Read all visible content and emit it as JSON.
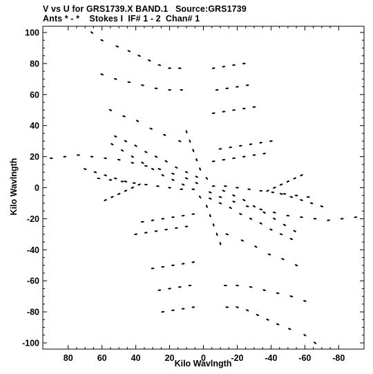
{
  "header": {
    "line1": "V vs U for GRS1739.X BAND.1   Source:GRS1739",
    "line2": "Ants * - *    Stokes I  IF# 1 - 2  Chan# 1"
  },
  "chart_data": {
    "type": "scatter",
    "title": "V vs U for GRS1739.X BAND.1   Source:GRS1739",
    "subtitle": "Ants * - *    Stokes I  IF# 1 - 2  Chan# 1",
    "xlabel": "Kilo Wavlngth",
    "ylabel": "Kilo Wavlngth",
    "x_axis_reversed": true,
    "xlim": [
      95,
      -95
    ],
    "ylim": [
      -104,
      104
    ],
    "xticks": [
      80,
      60,
      40,
      20,
      0,
      -20,
      -40,
      -60,
      -80
    ],
    "xtick_labels": [
      "80",
      "60",
      "40",
      "20",
      "0",
      "-20",
      "-40",
      "-60",
      "-80"
    ],
    "yticks": [
      100,
      80,
      60,
      40,
      20,
      0,
      -20,
      -40,
      -60,
      -80,
      -100
    ],
    "ytick_labels": [
      "100",
      "80",
      "60",
      "40",
      "20",
      "0",
      "-20",
      "-40",
      "-60",
      "-80",
      "-100"
    ],
    "grid": false,
    "marker_color": "#000000",
    "tracks": [
      {
        "x": [
          66,
          60,
          51,
          44,
          38,
          32,
          26,
          20,
          14
        ],
        "y": [
          100,
          95,
          91,
          88,
          85,
          82,
          79,
          77,
          77
        ]
      },
      {
        "x": [
          -14,
          -20,
          -26,
          -32,
          -38,
          -44,
          -51,
          -60,
          -66
        ],
        "y": [
          -77,
          -77,
          -79,
          -82,
          -85,
          -88,
          -91,
          -95,
          -100
        ]
      },
      {
        "x": [
          60,
          52,
          44,
          36,
          28,
          20,
          13
        ],
        "y": [
          73,
          70,
          68,
          66,
          64,
          63,
          63
        ]
      },
      {
        "x": [
          -13,
          -20,
          -28,
          -36,
          -44,
          -52,
          -60
        ],
        "y": [
          -63,
          -63,
          -64,
          -66,
          -68,
          -70,
          -73
        ]
      },
      {
        "x": [
          55,
          47,
          39,
          31,
          23,
          14
        ],
        "y": [
          50,
          46,
          43,
          38,
          34,
          30
        ]
      },
      {
        "x": [
          -14,
          -23,
          -31,
          -39,
          -47,
          -55
        ],
        "y": [
          -30,
          -34,
          -38,
          -43,
          -46,
          -50
        ]
      },
      {
        "x": [
          52,
          46,
          40,
          34,
          28,
          22,
          16,
          10,
          4
        ],
        "y": [
          33,
          30,
          27,
          23,
          20,
          17,
          13,
          10,
          7
        ]
      },
      {
        "x": [
          -4,
          -10,
          -16,
          -22,
          -28,
          -34,
          -40,
          -46,
          -52
        ],
        "y": [
          -7,
          -10,
          -13,
          -17,
          -20,
          -23,
          -27,
          -30,
          -33
        ]
      },
      {
        "x": [
          2,
          -2,
          -4,
          -6,
          -8,
          -10
        ],
        "y": [
          -6,
          -12,
          -18,
          -24,
          -30,
          -36
        ]
      },
      {
        "x": [
          -2,
          2,
          4,
          6,
          8,
          10
        ],
        "y": [
          6,
          12,
          18,
          24,
          30,
          36
        ]
      },
      {
        "x": [
          -12,
          -18,
          -24,
          -30,
          -36,
          -42,
          -48,
          -54
        ],
        "y": [
          -2,
          -5,
          -8,
          -12,
          -16,
          -20,
          -24,
          -28
        ]
      },
      {
        "x": [
          12,
          18,
          24,
          30,
          36,
          42,
          48,
          54
        ],
        "y": [
          2,
          5,
          8,
          12,
          16,
          20,
          24,
          28
        ]
      },
      {
        "x": [
          90,
          82,
          74,
          66,
          58,
          50,
          42,
          34,
          26,
          18,
          10,
          4
        ],
        "y": [
          19,
          20,
          21,
          20,
          19,
          18,
          16,
          14,
          12,
          9,
          6,
          3
        ]
      },
      {
        "x": [
          -4,
          -10,
          -18,
          -26,
          -34,
          -42,
          -50,
          -58,
          -66,
          -74,
          -82,
          -90
        ],
        "y": [
          -3,
          -6,
          -9,
          -12,
          -14,
          -16,
          -18,
          -19,
          -20,
          -21,
          -20,
          -19
        ]
      },
      {
        "x": [
          62,
          55,
          48,
          41,
          34,
          27,
          20,
          13,
          6
        ],
        "y": [
          6,
          5,
          4,
          3,
          2,
          1,
          0,
          -1,
          -1
        ]
      },
      {
        "x": [
          -6,
          -13,
          -20,
          -27,
          -34,
          -41,
          -48,
          -55,
          -62
        ],
        "y": [
          1,
          1,
          0,
          -1,
          -2,
          -3,
          -4,
          -5,
          -6
        ]
      },
      {
        "x": [
          36,
          30,
          24,
          18,
          12,
          6
        ],
        "y": [
          -22,
          -21,
          -20,
          -19,
          -18,
          -17
        ]
      },
      {
        "x": [
          -6,
          -12,
          -18,
          -24,
          -30,
          -36
        ],
        "y": [
          17,
          18,
          19,
          20,
          21,
          22
        ]
      },
      {
        "x": [
          40,
          34,
          28,
          22,
          16,
          10
        ],
        "y": [
          -30,
          -29,
          -28,
          -27,
          -26,
          -25
        ]
      },
      {
        "x": [
          -10,
          -16,
          -22,
          -28,
          -34,
          -40
        ],
        "y": [
          25,
          26,
          27,
          28,
          29,
          30
        ]
      },
      {
        "x": [
          30,
          24,
          18,
          12,
          6
        ],
        "y": [
          -52,
          -51,
          -50,
          -49,
          -48
        ]
      },
      {
        "x": [
          -6,
          -12,
          -18,
          -24,
          -30
        ],
        "y": [
          48,
          49,
          50,
          51,
          52
        ]
      },
      {
        "x": [
          26,
          20,
          14,
          8
        ],
        "y": [
          -66,
          -65,
          -64,
          -63
        ]
      },
      {
        "x": [
          -8,
          -14,
          -20,
          -26
        ],
        "y": [
          63,
          64,
          65,
          66
        ]
      },
      {
        "x": [
          24,
          18,
          12,
          6
        ],
        "y": [
          -80,
          -79,
          -78,
          -77
        ]
      },
      {
        "x": [
          -6,
          -12,
          -18,
          -24
        ],
        "y": [
          77,
          78,
          79,
          80
        ]
      },
      {
        "x": [
          58,
          54,
          50,
          46,
          42,
          38
        ],
        "y": [
          -8,
          -6,
          -4,
          -2,
          0,
          2
        ]
      },
      {
        "x": [
          -38,
          -42,
          -46,
          -50,
          -54,
          -58
        ],
        "y": [
          -2,
          0,
          2,
          4,
          6,
          8
        ]
      },
      {
        "x": [
          70,
          64,
          58,
          52,
          46
        ],
        "y": [
          12,
          10,
          8,
          6,
          4
        ]
      },
      {
        "x": [
          -46,
          -52,
          -58,
          -64,
          -70
        ],
        "y": [
          -4,
          -6,
          -8,
          -10,
          -12
        ]
      }
    ]
  }
}
